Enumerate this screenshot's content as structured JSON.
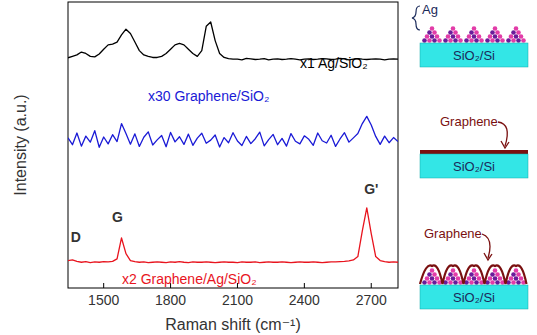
{
  "chart_data": {
    "type": "line",
    "x_label": "Raman shift (cm⁻¹)",
    "y_label": "Intensity (a.u.)",
    "xlim": [
      1340,
      2820
    ],
    "ylim": [
      0,
      100
    ],
    "xticks": [
      1500,
      1800,
      2100,
      2400,
      2700
    ],
    "tick_labels": "x",
    "x": [
      1340,
      1360,
      1380,
      1400,
      1420,
      1440,
      1460,
      1480,
      1500,
      1520,
      1540,
      1560,
      1580,
      1600,
      1620,
      1640,
      1660,
      1680,
      1700,
      1720,
      1740,
      1760,
      1780,
      1800,
      1820,
      1840,
      1860,
      1880,
      1900,
      1920,
      1940,
      1960,
      1980,
      2000,
      2020,
      2040,
      2060,
      2080,
      2100,
      2120,
      2140,
      2160,
      2180,
      2200,
      2220,
      2240,
      2260,
      2280,
      2300,
      2320,
      2340,
      2360,
      2380,
      2400,
      2420,
      2440,
      2460,
      2480,
      2500,
      2520,
      2540,
      2560,
      2580,
      2600,
      2620,
      2640,
      2660,
      2680,
      2700,
      2720,
      2740,
      2760,
      2780,
      2800,
      2820
    ],
    "series": [
      {
        "name": "x1 Ag/SiO₂",
        "color": "#000000",
        "values": [
          80.5,
          81,
          81.5,
          82.5,
          82,
          81,
          80.8,
          81.8,
          83.5,
          85,
          85.3,
          86,
          88.5,
          90.5,
          89,
          86,
          83,
          81.5,
          81,
          80.6,
          80.6,
          81,
          82,
          83.5,
          85,
          85.5,
          85,
          83.5,
          82,
          81,
          83,
          91.5,
          93,
          86.5,
          82,
          80.6,
          80.2,
          80,
          80,
          79.8,
          80.3,
          80.1,
          79.9,
          80,
          80.2,
          79.8,
          80,
          80.1,
          79.9,
          80,
          80.2,
          80,
          79.8,
          80,
          80.1,
          79.9,
          80,
          80.2,
          80.1,
          79.9,
          80,
          80.3,
          80.1,
          79.8,
          80,
          80.2,
          80,
          79.9,
          80,
          80.1,
          80,
          79.8,
          80,
          80.1,
          80
        ]
      },
      {
        "name": "x30 Graphene/SiO₂",
        "color": "#1a1ad6",
        "values": [
          52.5,
          50.1,
          54.2,
          49.6,
          53.1,
          51.0,
          55.0,
          49.2,
          52.8,
          50.4,
          53.6,
          51.2,
          57.5,
          54.0,
          50.3,
          53.9,
          49.5,
          52.7,
          54.6,
          50.0,
          51.8,
          53.3,
          49.4,
          54.4,
          51.1,
          52.9,
          50.2,
          53.8,
          49.9,
          52.4,
          54.1,
          50.6,
          51.7,
          53.5,
          49.3,
          52.6,
          50.8,
          54.3,
          51.4,
          49.8,
          53.0,
          50.5,
          52.2,
          54.5,
          49.7,
          51.9,
          53.7,
          50.1,
          52.3,
          49.6,
          54.0,
          51.3,
          50.4,
          53.2,
          52.0,
          49.9,
          54.2,
          51.5,
          50.7,
          53.4,
          49.5,
          52.1,
          54.3,
          51.0,
          52.5,
          54.0,
          57.5,
          60.0,
          57.0,
          53.0,
          50.2,
          53.1,
          50.8,
          52.6,
          51.2
        ]
      },
      {
        "name": "x2 Graphene/Ag/SiO₂",
        "color": "#e8141e",
        "values": [
          9.6,
          9.8,
          9.3,
          9.0,
          9.2,
          8.9,
          9.1,
          9.0,
          9.2,
          9.1,
          9.3,
          10.2,
          17.5,
          12.0,
          9.6,
          9.2,
          9.0,
          9.1,
          8.9,
          9.0,
          9.1,
          9.0,
          8.9,
          9.1,
          9.0,
          9.2,
          9.0,
          8.9,
          9.1,
          9.0,
          9.0,
          9.1,
          9.0,
          8.9,
          9.0,
          9.1,
          9.0,
          9.0,
          8.9,
          9.1,
          9.0,
          9.0,
          9.1,
          8.9,
          9.0,
          9.1,
          9.0,
          9.0,
          9.1,
          9.0,
          8.9,
          9.0,
          9.1,
          9.0,
          9.0,
          9.1,
          9.0,
          8.9,
          9.0,
          9.1,
          9.1,
          9.2,
          9.3,
          9.5,
          9.8,
          11.0,
          20.0,
          28.0,
          19.0,
          11.0,
          9.6,
          9.2,
          9.0,
          9.1,
          9.0
        ]
      }
    ],
    "annotations": [
      {
        "text": "D",
        "x": 1375,
        "y": 16
      },
      {
        "text": "G",
        "x": 1562,
        "y": 23
      },
      {
        "text": "G'",
        "x": 2700,
        "y": 33
      }
    ]
  },
  "schematic": {
    "panels": [
      {
        "label": "Ag",
        "substrate": "SiO₂/Si"
      },
      {
        "label": "Graphene",
        "substrate": "SiO₂/Si"
      },
      {
        "label": "Graphene",
        "substrate": "SiO₂/Si"
      }
    ]
  }
}
